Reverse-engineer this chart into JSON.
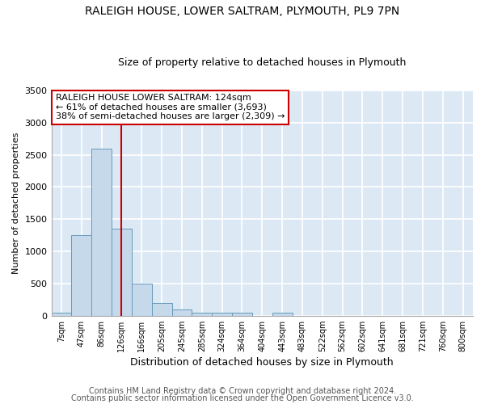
{
  "title1": "RALEIGH HOUSE, LOWER SALTRAM, PLYMOUTH, PL9 7PN",
  "title2": "Size of property relative to detached houses in Plymouth",
  "xlabel": "Distribution of detached houses by size in Plymouth",
  "ylabel": "Number of detached properties",
  "annotation_line1": "RALEIGH HOUSE LOWER SALTRAM: 124sqm",
  "annotation_line2": "← 61% of detached houses are smaller (3,693)",
  "annotation_line3": "38% of semi-detached houses are larger (2,309) →",
  "footer1": "Contains HM Land Registry data © Crown copyright and database right 2024.",
  "footer2": "Contains public sector information licensed under the Open Government Licence v3.0.",
  "bin_labels": [
    "7sqm",
    "47sqm",
    "86sqm",
    "126sqm",
    "166sqm",
    "205sqm",
    "245sqm",
    "285sqm",
    "324sqm",
    "364sqm",
    "404sqm",
    "443sqm",
    "483sqm",
    "522sqm",
    "562sqm",
    "602sqm",
    "641sqm",
    "681sqm",
    "721sqm",
    "760sqm",
    "800sqm"
  ],
  "bar_values": [
    50,
    1250,
    2600,
    1350,
    500,
    200,
    100,
    50,
    50,
    50,
    0,
    50,
    0,
    0,
    0,
    0,
    0,
    0,
    0,
    0,
    0
  ],
  "bar_color": "#c6d9ea",
  "bar_edge_color": "#6699bb",
  "property_line_x": 2.97,
  "property_line_color": "#cc0000",
  "ylim": [
    0,
    3500
  ],
  "yticks": [
    0,
    500,
    1000,
    1500,
    2000,
    2500,
    3000,
    3500
  ],
  "background_color": "#dce9f5",
  "grid_color": "#ffffff",
  "annotation_box_color": "#ffffff",
  "annotation_box_edge": "#cc0000",
  "title1_fontsize": 10,
  "title2_fontsize": 9,
  "annotation_fontsize": 8,
  "footer_fontsize": 7,
  "fig_bg_color": "#ffffff"
}
